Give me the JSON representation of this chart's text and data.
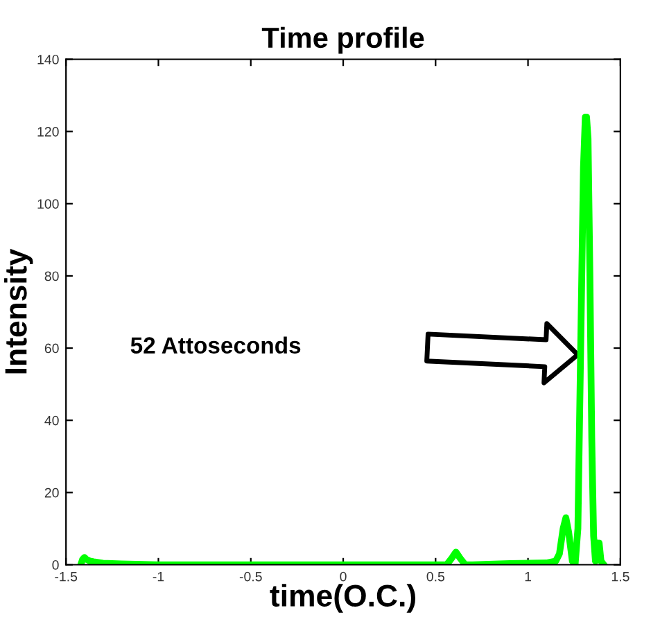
{
  "chart_data": {
    "type": "line",
    "title": "Time profile",
    "xlabel": "time(O.C.)",
    "ylabel": "Intensity",
    "xlim": [
      -1.5,
      1.5
    ],
    "ylim": [
      0,
      140
    ],
    "xticks": [
      -1.5,
      -1,
      -0.5,
      0,
      0.5,
      1,
      1.5
    ],
    "yticks": [
      0,
      20,
      40,
      60,
      80,
      100,
      120,
      140
    ],
    "grid": false,
    "legend": false,
    "marker": "none",
    "line_style": "solid",
    "series": [
      {
        "color": "#00ff00",
        "x": [
          -1.42,
          -1.41,
          -1.4,
          -1.39,
          -1.37,
          -1.35,
          -1.3,
          -1.2,
          -1.0,
          -0.5,
          0.0,
          0.5,
          0.56,
          0.59,
          0.61,
          0.63,
          0.66,
          0.7,
          0.9,
          1.1,
          1.15,
          1.17,
          1.19,
          1.205,
          1.22,
          1.24,
          1.255,
          1.27,
          1.285,
          1.3,
          1.31,
          1.317,
          1.325,
          1.335,
          1.345,
          1.355,
          1.365,
          1.375,
          1.385,
          1.395,
          1.41
        ],
        "values": [
          0,
          1.5,
          2,
          1.5,
          1,
          0.8,
          0.4,
          0.2,
          0,
          0,
          0,
          0,
          0,
          2,
          3.5,
          2,
          0,
          0,
          0.3,
          0.5,
          1,
          3,
          10,
          13,
          9,
          1,
          0,
          10,
          60,
          110,
          124,
          124,
          118,
          80,
          35,
          8,
          1,
          6,
          6,
          1,
          0
        ]
      }
    ],
    "annotations": [
      "52 Attoseconds"
    ]
  }
}
